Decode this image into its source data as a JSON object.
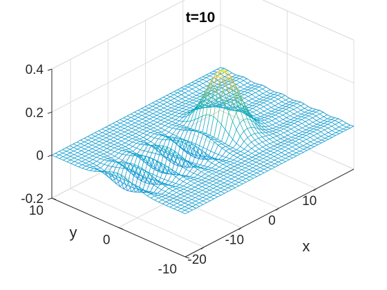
{
  "chart_data": {
    "type": "surface-mesh-3d",
    "title": "t=10",
    "xlabel": "x",
    "ylabel": "y",
    "zlabel": "",
    "xlim": [
      -25,
      20
    ],
    "ylim": [
      -10,
      10
    ],
    "zlim": [
      -0.2,
      0.4
    ],
    "x_ticks": [
      -20,
      -10,
      0,
      10
    ],
    "y_ticks": [
      -10,
      0,
      10
    ],
    "z_ticks": [
      -0.2,
      0,
      0.2,
      0.4
    ],
    "x_tick_labels": [
      "-20",
      "-10",
      "0",
      "10"
    ],
    "y_tick_labels": [
      "-10",
      "0",
      "10"
    ],
    "z_tick_labels": [
      "-0.2",
      "0",
      "0.2",
      "0.4"
    ],
    "grid": true,
    "colormap": "parula",
    "peak": {
      "x": 3,
      "y": 0,
      "z": 0.28
    },
    "ripple_region_x": [
      -22,
      0
    ],
    "ripple_amplitude_range": [
      -0.08,
      0.08
    ],
    "mesh_resolution": {
      "x_lines": 48,
      "y_lines": 36
    }
  }
}
